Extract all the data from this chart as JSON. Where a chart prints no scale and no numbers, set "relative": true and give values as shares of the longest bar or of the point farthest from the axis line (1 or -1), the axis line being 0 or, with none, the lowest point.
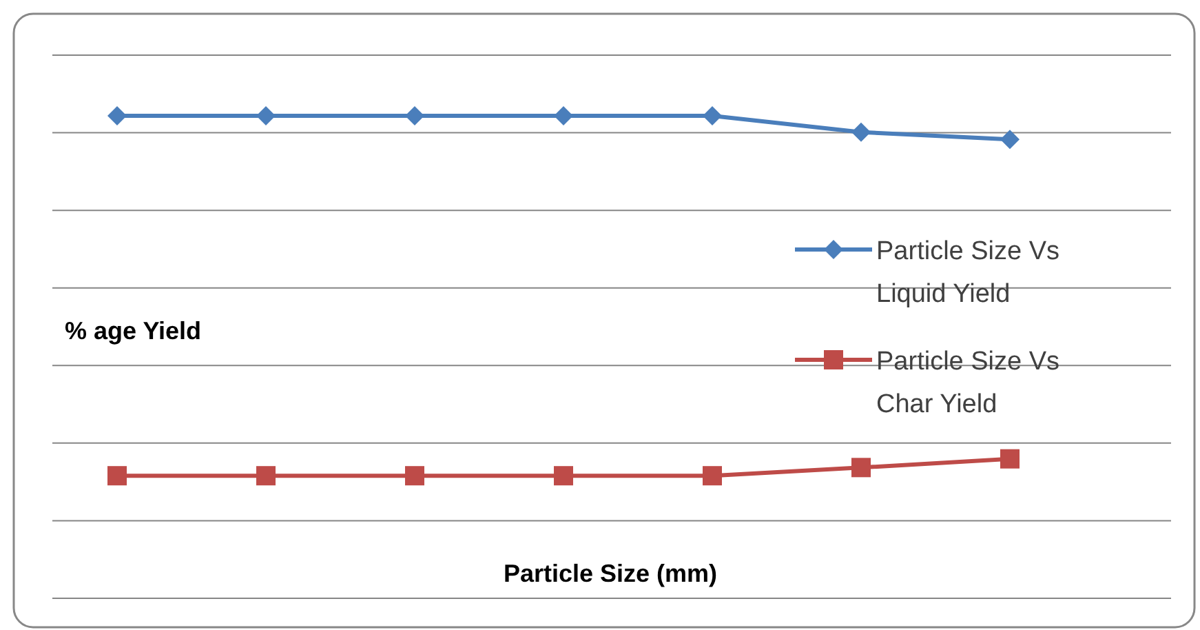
{
  "chart_data": {
    "type": "line",
    "xlabel": "Particle Size (mm)",
    "ylabel": "% age Yield",
    "categories": [
      null,
      null,
      null,
      null,
      null,
      null,
      null
    ],
    "relative": true,
    "grid": "y",
    "legend": "right",
    "series": [
      {
        "name": "Particle Size Vs Liquid Yield",
        "color": "#4a7ebb",
        "marker": "diamond",
        "values": [
          1,
          1,
          1,
          1,
          1,
          0.966,
          0.951
        ]
      },
      {
        "name": "Particle Size Vs Char Yield",
        "color": "#be4b48",
        "marker": "square",
        "values": [
          0.254,
          0.254,
          0.254,
          0.254,
          0.254,
          0.271,
          0.289
        ]
      }
    ]
  }
}
